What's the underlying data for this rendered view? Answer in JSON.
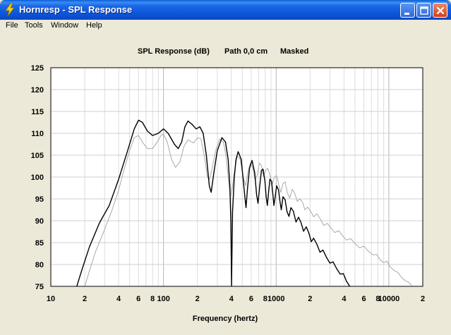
{
  "window": {
    "title": "Hornresp - SPL Response",
    "title_bar_color": "#0a55d9",
    "controls": [
      "minimize-icon",
      "maximize-icon",
      "close-icon"
    ]
  },
  "menu": {
    "file": "File",
    "tools": "Tools",
    "window": "Window",
    "help": "Help"
  },
  "chart": {
    "title_parts": [
      "SPL Response (dB)",
      "Path 0,0 cm",
      "Masked"
    ],
    "xlabel": "Frequency (hertz)"
  },
  "chart_data": {
    "type": "line",
    "title": "SPL Response (dB)   Path 0,0 cm   Masked",
    "xlabel": "Frequency (hertz)",
    "ylabel": "",
    "x_scale": "log",
    "xlim": [
      10,
      20000
    ],
    "ylim": [
      75,
      125
    ],
    "grid": true,
    "yticks": [
      75,
      80,
      85,
      90,
      95,
      100,
      105,
      110,
      115,
      120,
      125
    ],
    "xtick_labels": [
      {
        "x": 10,
        "label": "10"
      },
      {
        "x": 20,
        "label": "2"
      },
      {
        "x": 40,
        "label": "4"
      },
      {
        "x": 60,
        "label": "6"
      },
      {
        "x": 80,
        "label": "8"
      },
      {
        "x": 100,
        "label": "100"
      },
      {
        "x": 200,
        "label": "2"
      },
      {
        "x": 400,
        "label": "4"
      },
      {
        "x": 600,
        "label": "6"
      },
      {
        "x": 800,
        "label": "8"
      },
      {
        "x": 1000,
        "label": "1000"
      },
      {
        "x": 2000,
        "label": "2"
      },
      {
        "x": 4000,
        "label": "4"
      },
      {
        "x": 6000,
        "label": "6"
      },
      {
        "x": 8000,
        "label": "8"
      },
      {
        "x": 10000,
        "label": "10000"
      },
      {
        "x": 20000,
        "label": "2"
      }
    ],
    "series": [
      {
        "color": "#000000",
        "points": [
          [
            17,
            75
          ],
          [
            19,
            79
          ],
          [
            22,
            84
          ],
          [
            27,
            89.5
          ],
          [
            33,
            93.5
          ],
          [
            40,
            99.5
          ],
          [
            48,
            106
          ],
          [
            55,
            111
          ],
          [
            60,
            113
          ],
          [
            65,
            112.5
          ],
          [
            72,
            110.5
          ],
          [
            80,
            109.5
          ],
          [
            90,
            110
          ],
          [
            100,
            111
          ],
          [
            110,
            110
          ],
          [
            125,
            107.5
          ],
          [
            135,
            106.5
          ],
          [
            145,
            108
          ],
          [
            155,
            111.5
          ],
          [
            165,
            112.8
          ],
          [
            180,
            112
          ],
          [
            195,
            111
          ],
          [
            210,
            111.5
          ],
          [
            225,
            110
          ],
          [
            240,
            105
          ],
          [
            255,
            98
          ],
          [
            265,
            96.5
          ],
          [
            280,
            101
          ],
          [
            300,
            106
          ],
          [
            330,
            109
          ],
          [
            355,
            108
          ],
          [
            375,
            104
          ],
          [
            388,
            98
          ],
          [
            396,
            90
          ],
          [
            400,
            80
          ],
          [
            402,
            75
          ],
          [
            404,
            80
          ],
          [
            410,
            92
          ],
          [
            425,
            100
          ],
          [
            440,
            104
          ],
          [
            460,
            105.8
          ],
          [
            490,
            104
          ],
          [
            520,
            97
          ],
          [
            540,
            93
          ],
          [
            555,
            97
          ],
          [
            580,
            102
          ],
          [
            610,
            103.8
          ],
          [
            645,
            101
          ],
          [
            670,
            96
          ],
          [
            690,
            94
          ],
          [
            715,
            98
          ],
          [
            740,
            101.5
          ],
          [
            765,
            101.8
          ],
          [
            795,
            99
          ],
          [
            815,
            95.5
          ],
          [
            835,
            93.5
          ],
          [
            860,
            97
          ],
          [
            880,
            99.5
          ],
          [
            910,
            99
          ],
          [
            935,
            96
          ],
          [
            955,
            93.5
          ],
          [
            980,
            95.5
          ],
          [
            1010,
            98
          ],
          [
            1050,
            97
          ],
          [
            1080,
            94.5
          ],
          [
            1110,
            92.5
          ],
          [
            1150,
            95.5
          ],
          [
            1200,
            94.8
          ],
          [
            1250,
            92
          ],
          [
            1300,
            91
          ],
          [
            1350,
            93
          ],
          [
            1420,
            92.2
          ],
          [
            1500,
            89.7
          ],
          [
            1580,
            90.8
          ],
          [
            1660,
            89.6
          ],
          [
            1750,
            87.6
          ],
          [
            1850,
            88.6
          ],
          [
            1950,
            87.2
          ],
          [
            2050,
            85.2
          ],
          [
            2150,
            86
          ],
          [
            2300,
            84.6
          ],
          [
            2450,
            82.8
          ],
          [
            2600,
            83.3
          ],
          [
            2800,
            81.6
          ],
          [
            3000,
            80.3
          ],
          [
            3200,
            80.6
          ],
          [
            3450,
            79
          ],
          [
            3700,
            77.8
          ],
          [
            3950,
            77.9
          ],
          [
            4200,
            76.2
          ],
          [
            4500,
            75
          ]
        ]
      },
      {
        "color": "#a9a9a9",
        "points": [
          [
            20,
            75
          ],
          [
            22,
            78.5
          ],
          [
            25,
            83
          ],
          [
            30,
            88
          ],
          [
            35,
            92.5
          ],
          [
            40,
            97
          ],
          [
            45,
            102
          ],
          [
            50,
            106
          ],
          [
            55,
            109
          ],
          [
            60,
            109.5
          ],
          [
            65,
            108
          ],
          [
            72,
            106.5
          ],
          [
            80,
            106.5
          ],
          [
            88,
            108
          ],
          [
            95,
            109.5
          ],
          [
            100,
            109.8
          ],
          [
            108,
            108
          ],
          [
            118,
            104
          ],
          [
            128,
            102.2
          ],
          [
            140,
            103.5
          ],
          [
            152,
            107
          ],
          [
            165,
            108.5
          ],
          [
            185,
            107.8
          ],
          [
            200,
            109
          ],
          [
            215,
            108.7
          ],
          [
            230,
            105
          ],
          [
            245,
            100
          ],
          [
            257,
            99.5
          ],
          [
            270,
            102
          ],
          [
            290,
            106
          ],
          [
            315,
            108.7
          ],
          [
            340,
            108
          ],
          [
            358,
            105
          ],
          [
            372,
            101
          ],
          [
            382,
            98
          ],
          [
            392,
            95.5
          ],
          [
            405,
            97
          ],
          [
            425,
            101
          ],
          [
            450,
            104.8
          ],
          [
            480,
            104
          ],
          [
            510,
            100
          ],
          [
            535,
            98
          ],
          [
            560,
            101
          ],
          [
            590,
            103.2
          ],
          [
            620,
            102
          ],
          [
            650,
            99.3
          ],
          [
            680,
            100.5
          ],
          [
            710,
            103.2
          ],
          [
            740,
            102.6
          ],
          [
            770,
            100.2
          ],
          [
            800,
            101.3
          ],
          [
            840,
            102
          ],
          [
            880,
            100.5
          ],
          [
            920,
            98.2
          ],
          [
            960,
            99.9
          ],
          [
            1010,
            100.3
          ],
          [
            1060,
            98
          ],
          [
            1100,
            96.5
          ],
          [
            1150,
            98.5
          ],
          [
            1200,
            98.9
          ],
          [
            1260,
            96.3
          ],
          [
            1320,
            95.2
          ],
          [
            1390,
            97.2
          ],
          [
            1460,
            96.3
          ],
          [
            1540,
            94.4
          ],
          [
            1620,
            95
          ],
          [
            1710,
            94.3
          ],
          [
            1800,
            92.5
          ],
          [
            1900,
            93.1
          ],
          [
            2000,
            92.4
          ],
          [
            2150,
            90.9
          ],
          [
            2300,
            91.6
          ],
          [
            2450,
            90.5
          ],
          [
            2650,
            88.9
          ],
          [
            2850,
            89.4
          ],
          [
            3050,
            88.4
          ],
          [
            3300,
            87.3
          ],
          [
            3600,
            87.7
          ],
          [
            3900,
            86.5
          ],
          [
            4200,
            85.6
          ],
          [
            4600,
            85.9
          ],
          [
            5000,
            84.8
          ],
          [
            5500,
            83.8
          ],
          [
            6000,
            84.2
          ],
          [
            6600,
            83
          ],
          [
            7200,
            82.2
          ],
          [
            7800,
            82.3
          ],
          [
            8400,
            81
          ],
          [
            9000,
            80.4
          ],
          [
            9600,
            80.8
          ],
          [
            10200,
            79.6
          ],
          [
            11000,
            78.7
          ],
          [
            12000,
            78.2
          ],
          [
            13000,
            77
          ],
          [
            14000,
            76.3
          ],
          [
            15000,
            75.9
          ],
          [
            16000,
            75.2
          ]
        ]
      }
    ]
  }
}
